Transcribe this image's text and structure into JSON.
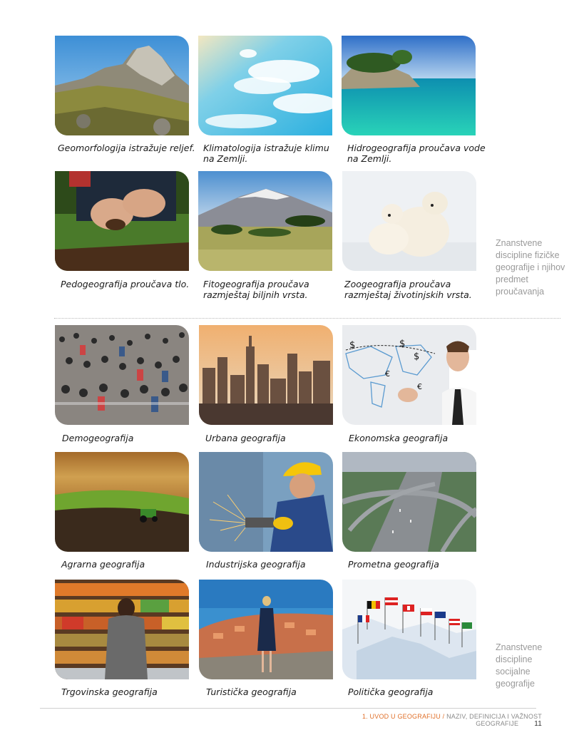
{
  "physical": {
    "captions": [
      "Geomorfologija istražuje reljef.",
      "Klimatologija istražuje klimu na Zemlji.",
      "Hidrogeografija proučava vode na Zemlji.",
      "Pedogeografija proučava tlo.",
      "Fitogeografija proučava razmještaj biljnih vrsta.",
      "Zoogeografija proučava razmještaj životinjskih vrsta."
    ],
    "side_note": "Znanstvene discipline fizičke geografije i njihov predmet proučavanja"
  },
  "social": {
    "captions": [
      "Demogeografija",
      "Urbana geografija",
      "Ekonomska geografija",
      "Agrarna geografija",
      "Industrijska geografija",
      "Prometna geografija",
      "Trgovinska geografija",
      "Turistička geografija",
      "Politička geografija"
    ],
    "side_note": "Znanstvene discipline socijalne geografije"
  },
  "footer": {
    "chapter": "1. UVOD U GEOGRAFIJU",
    "separator": " / ",
    "section": "NAZIV, DEFINICIJA I VAŽNOST GEOGRAFIJE",
    "page_number": "11"
  },
  "icons": {
    "dollar": "$",
    "euro": "€"
  }
}
